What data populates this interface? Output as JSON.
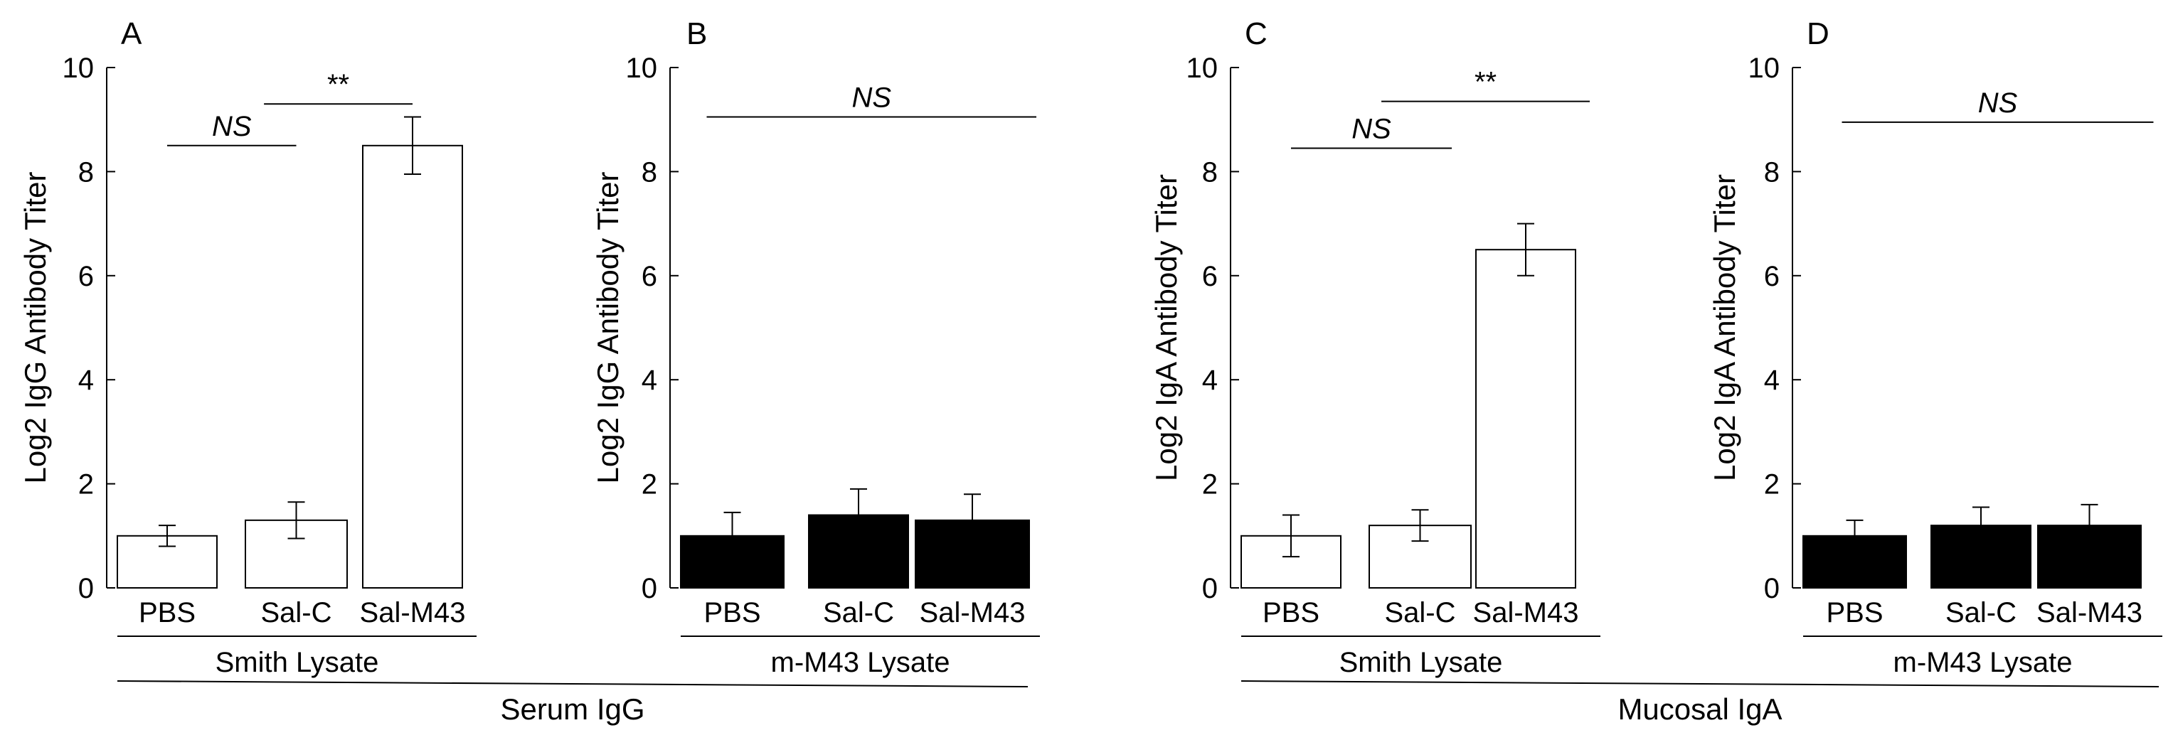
{
  "chart_data": [
    {
      "type": "bar",
      "panel_label": "A",
      "ylabel": "Log2 IgG Antibody Titer",
      "ylim": [
        0,
        10
      ],
      "yticks": [
        0,
        2,
        4,
        6,
        8,
        10
      ],
      "categories": [
        "PBS",
        "Sal-C",
        "Sal-M43"
      ],
      "values": [
        1.0,
        1.3,
        8.5
      ],
      "errors": [
        0.2,
        0.35,
        0.55
      ],
      "bar_color": "#ffffff",
      "lysate_label": "Smith Lysate",
      "annotations": [
        {
          "text": "NS",
          "from": 0,
          "to": 1,
          "y": 8.5
        },
        {
          "text": "**",
          "from": 0.75,
          "to": 2.0,
          "y": 9.3
        }
      ]
    },
    {
      "type": "bar",
      "panel_label": "B",
      "ylabel": "Log2 IgG Antibody Titer",
      "ylim": [
        0,
        10
      ],
      "yticks": [
        0,
        2,
        4,
        6,
        8,
        10
      ],
      "categories": [
        "PBS",
        "Sal-C",
        "Sal-M43"
      ],
      "values": [
        1.0,
        1.4,
        1.3
      ],
      "errors": [
        0.45,
        0.5,
        0.5
      ],
      "bar_color": "#000000",
      "lysate_label": "m-M43 Lysate",
      "annotations": [
        {
          "text": "NS",
          "from": -0.2,
          "to": 2.5,
          "y": 9.05
        }
      ]
    },
    {
      "type": "bar",
      "panel_label": "C",
      "ylabel": "Log2 IgA Antibody Titer",
      "ylim": [
        0,
        10
      ],
      "yticks": [
        0,
        2,
        4,
        6,
        8,
        10
      ],
      "categories": [
        "PBS",
        "Sal-C",
        "Sal-M43"
      ],
      "values": [
        1.0,
        1.2,
        6.5
      ],
      "errors": [
        0.4,
        0.3,
        0.5
      ],
      "bar_color": "#ffffff",
      "lysate_label": "Smith Lysate",
      "annotations": [
        {
          "text": "NS",
          "from": 0,
          "to": 1.3,
          "y": 8.45
        },
        {
          "text": "**",
          "from": 0.7,
          "to": 2.5,
          "y": 9.35
        }
      ]
    },
    {
      "type": "bar",
      "panel_label": "D",
      "ylabel": "Log2 IgA Antibody Titer",
      "ylim": [
        0,
        10
      ],
      "yticks": [
        0,
        2,
        4,
        6,
        8,
        10
      ],
      "categories": [
        "PBS",
        "Sal-C",
        "Sal-M43"
      ],
      "values": [
        1.0,
        1.2,
        1.2
      ],
      "errors": [
        0.3,
        0.35,
        0.4
      ],
      "bar_color": "#000000",
      "lysate_label": "m-M43 Lysate",
      "annotations": [
        {
          "text": "NS",
          "from": -0.1,
          "to": 2.5,
          "y": 8.95
        }
      ]
    }
  ],
  "groups": [
    {
      "label": "Serum IgG",
      "panels": [
        0,
        1
      ]
    },
    {
      "label": "Mucosal IgA",
      "panels": [
        2,
        3
      ]
    }
  ]
}
